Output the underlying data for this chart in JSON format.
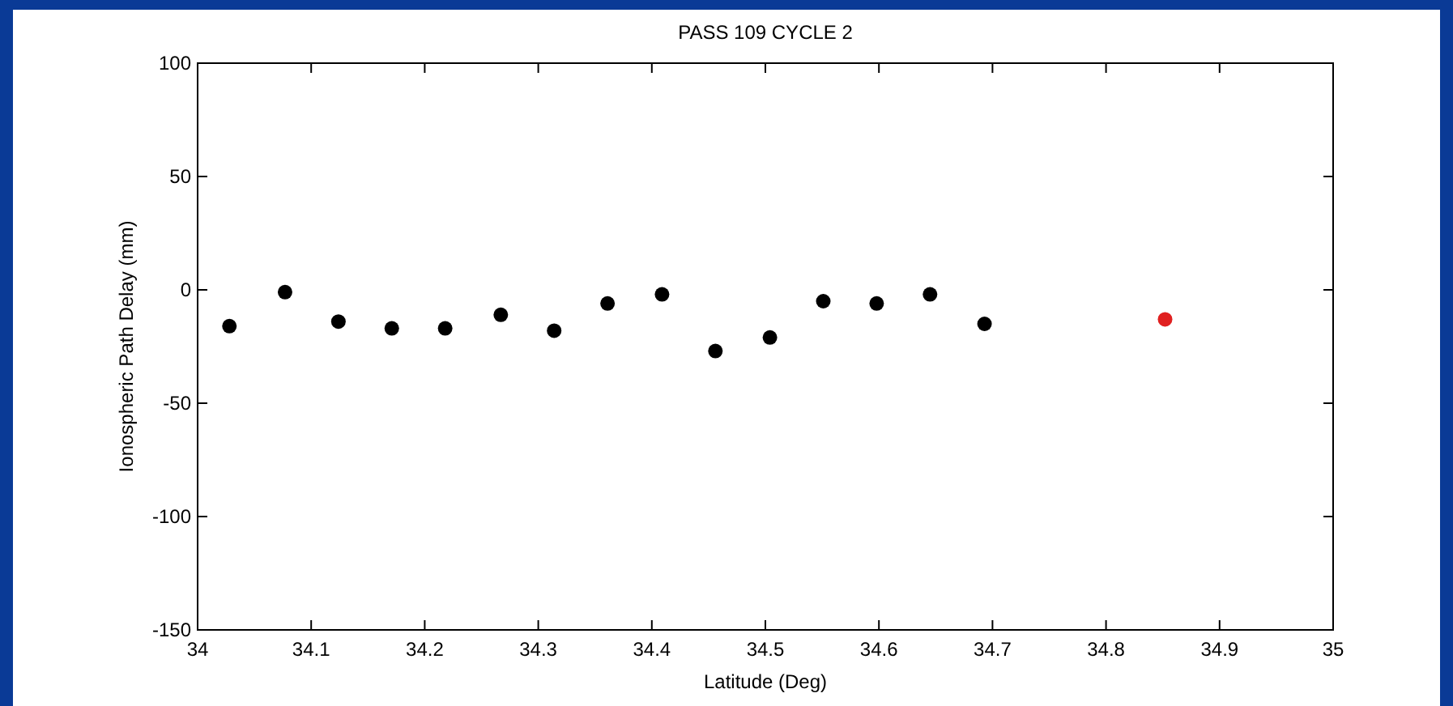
{
  "chart_data": {
    "type": "scatter",
    "title": "PASS 109 CYCLE 2",
    "xlabel": "Latitude (Deg)",
    "ylabel": "Ionospheric Path Delay (mm)",
    "xlim": [
      34,
      35
    ],
    "xticks": [
      34,
      34.1,
      34.2,
      34.3,
      34.4,
      34.5,
      34.6,
      34.7,
      34.8,
      34.9,
      35
    ],
    "ylim": [
      -150,
      100
    ],
    "yticks": [
      -150,
      -100,
      -50,
      0,
      50,
      100
    ],
    "grid": false,
    "marker": "circle",
    "series": [
      {
        "color": "#000000",
        "x": [
          34.028,
          34.077,
          34.124,
          34.171,
          34.218,
          34.267,
          34.314,
          34.361,
          34.409,
          34.456,
          34.504,
          34.551,
          34.598,
          34.645,
          34.693
        ],
        "values": [
          -16,
          -1,
          -14,
          -17,
          -17,
          -11,
          -18,
          -6,
          -2,
          -27,
          -21,
          -5,
          -6,
          -2,
          -15
        ]
      },
      {
        "color": "#e02020",
        "x": [
          34.852
        ],
        "values": [
          -13
        ]
      }
    ]
  }
}
